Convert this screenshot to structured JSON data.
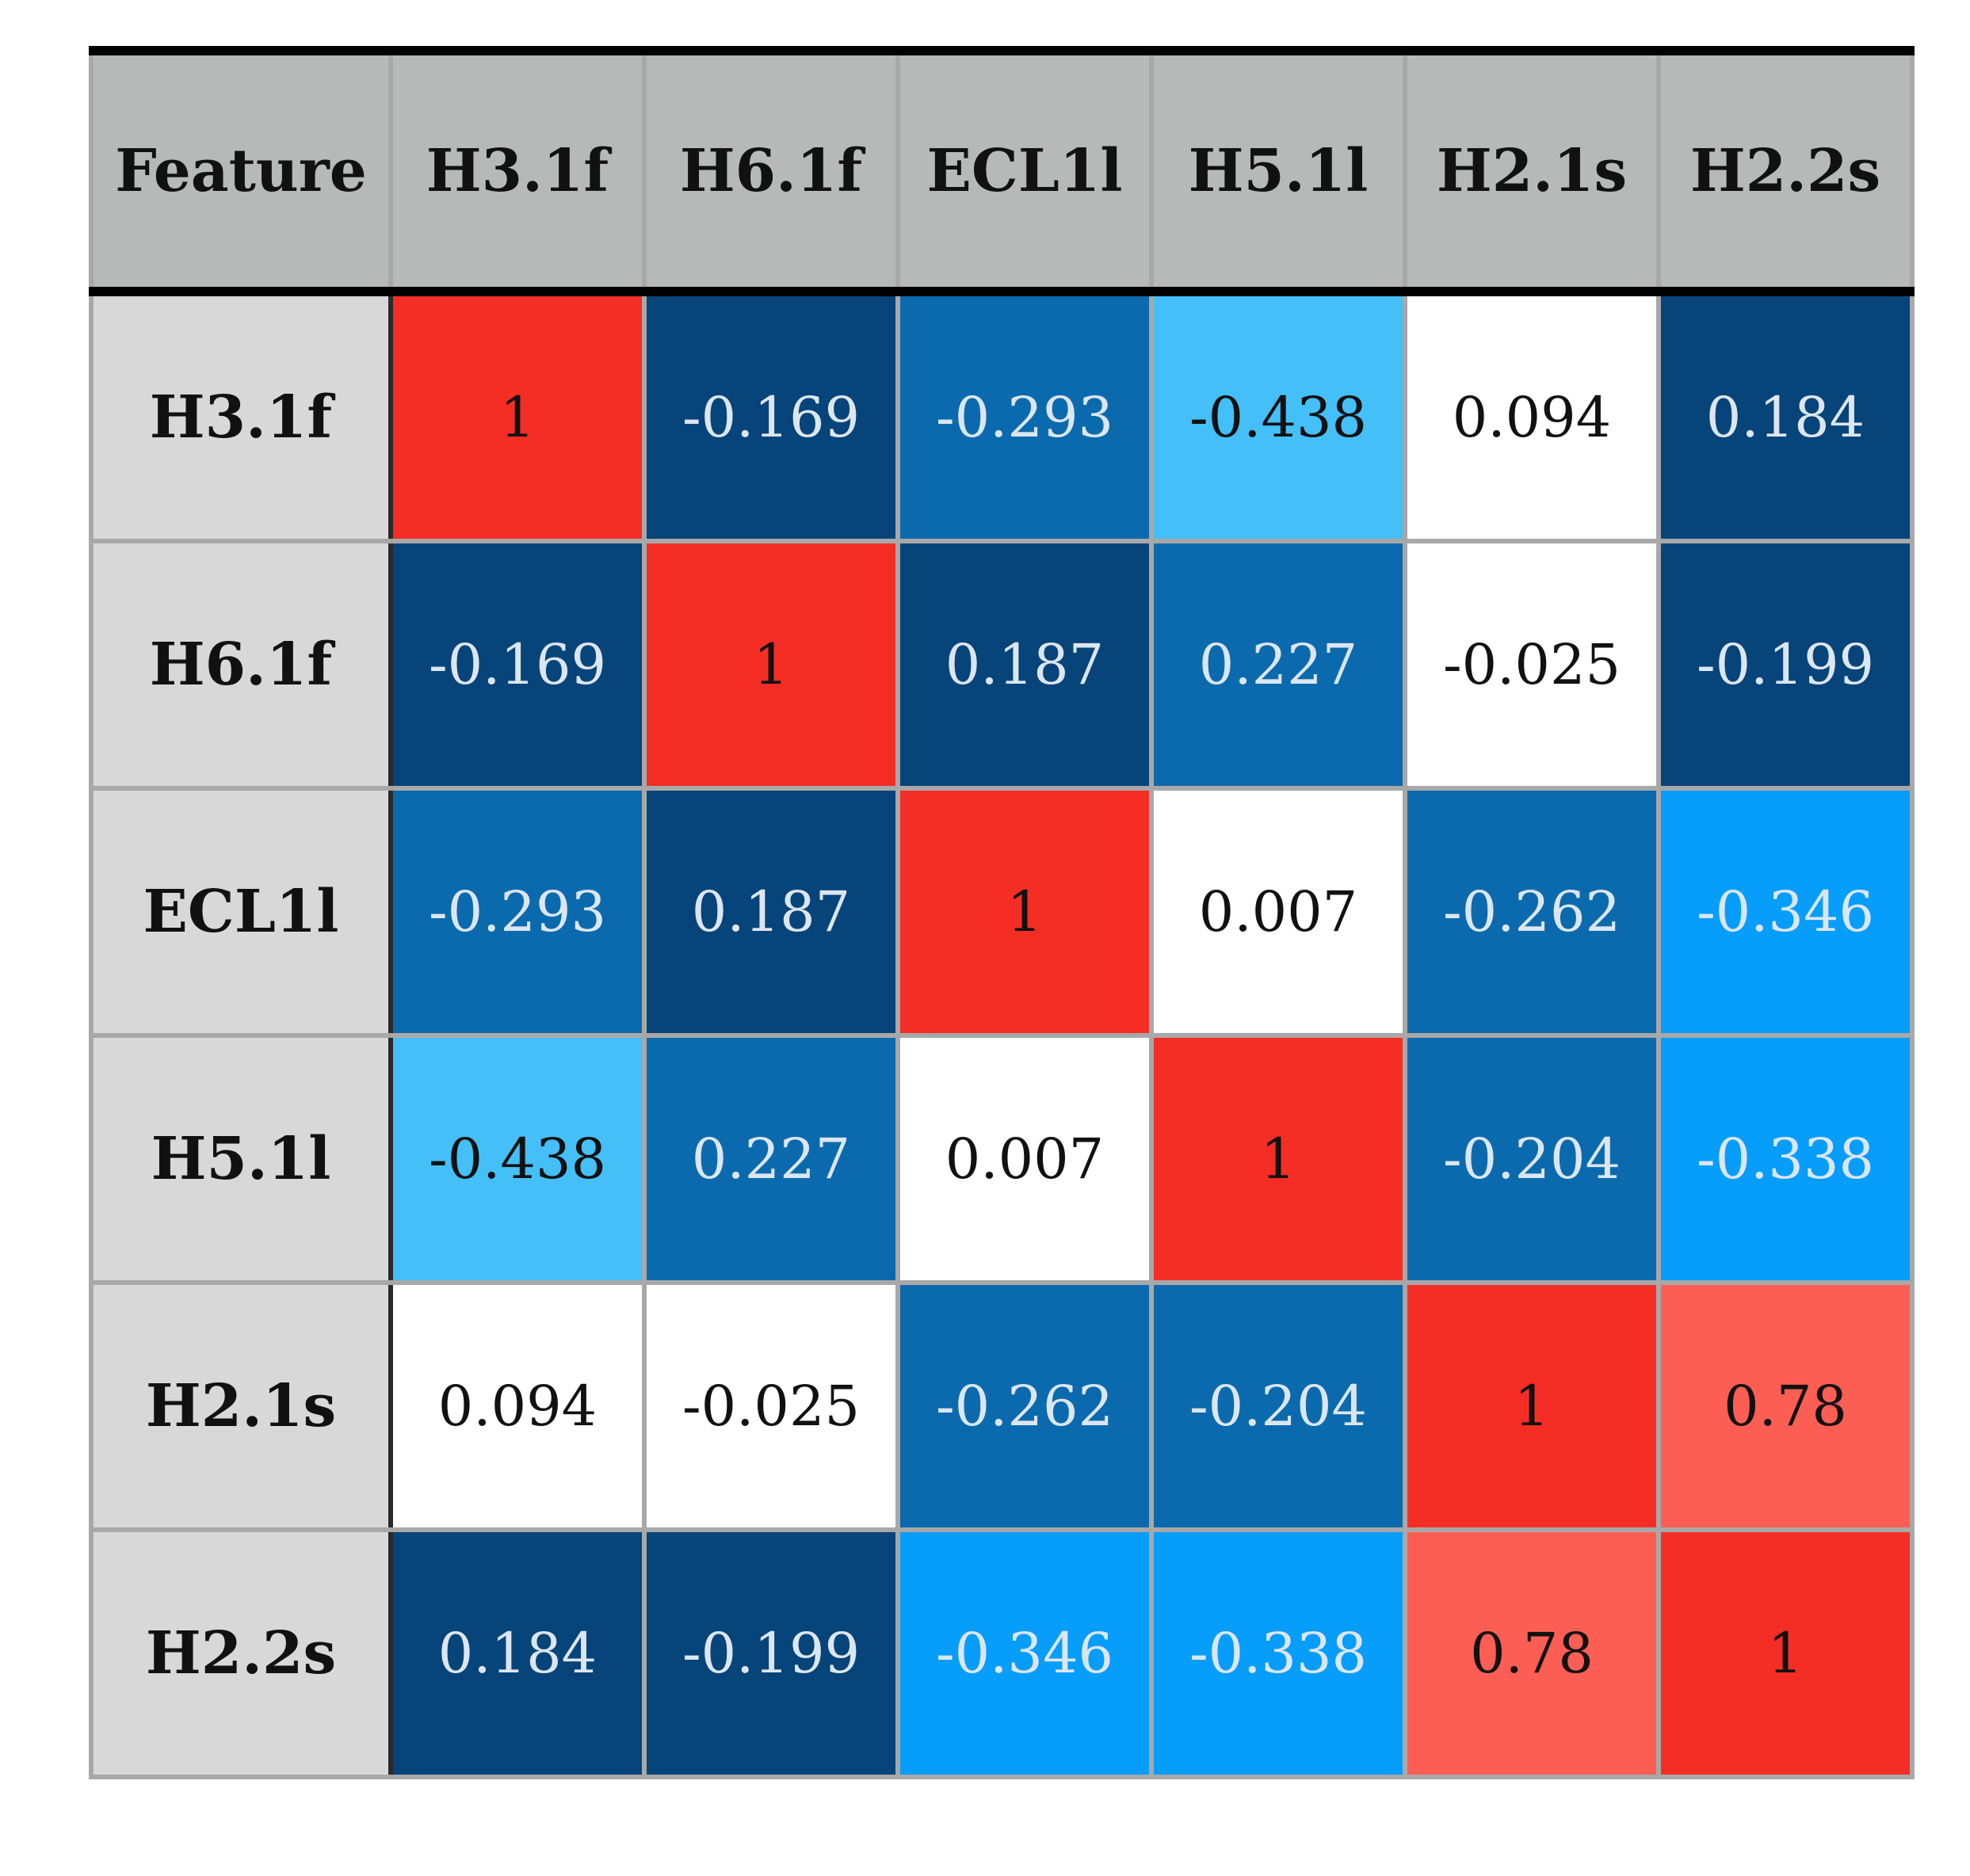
{
  "chart_data": {
    "type": "heatmap",
    "corner_label": "Feature",
    "columns": [
      "H3.1f",
      "H6.1f",
      "ECL1l",
      "H5.1l",
      "H2.1s",
      "H2.2s"
    ],
    "rows": [
      "H3.1f",
      "H6.1f",
      "ECL1l",
      "H5.1l",
      "H2.1s",
      "H2.2s"
    ],
    "values": [
      [
        "1",
        "-0.169",
        "-0.293",
        "-0.438",
        "0.094",
        "0.184"
      ],
      [
        "-0.169",
        "1",
        "0.187",
        "0.227",
        "-0.025",
        "-0.199"
      ],
      [
        "-0.293",
        "0.187",
        "1",
        "0.007",
        "-0.262",
        "-0.346"
      ],
      [
        "-0.438",
        "0.227",
        "0.007",
        "1",
        "-0.204",
        "-0.338"
      ],
      [
        "0.094",
        "-0.025",
        "-0.262",
        "-0.204",
        "1",
        "0.78"
      ],
      [
        "0.184",
        "-0.199",
        "-0.346",
        "-0.338",
        "0.78",
        "1"
      ]
    ],
    "cell_colors": [
      [
        "#f52e25",
        "#06447a",
        "#0b6aad",
        "#45bff8",
        "#ffffff",
        "#06447a"
      ],
      [
        "#06447a",
        "#f52e25",
        "#06447a",
        "#0b6aad",
        "#ffffff",
        "#06447a"
      ],
      [
        "#0b6aad",
        "#06447a",
        "#f52e25",
        "#ffffff",
        "#0b6aad",
        "#079dfb"
      ],
      [
        "#45bff8",
        "#0b6aad",
        "#ffffff",
        "#f52e25",
        "#0b6aad",
        "#079dfb"
      ],
      [
        "#ffffff",
        "#ffffff",
        "#0b6aad",
        "#0b6aad",
        "#f52e25",
        "#fd5e53"
      ],
      [
        "#06447a",
        "#06447a",
        "#079dfb",
        "#079dfb",
        "#fd5e53",
        "#f52e25"
      ]
    ],
    "text_colors": [
      [
        "#111111",
        "#dce6f0",
        "#dce6f0",
        "#111111",
        "#111111",
        "#dce6f0"
      ],
      [
        "#dce6f0",
        "#111111",
        "#dce6f0",
        "#dce6f0",
        "#111111",
        "#dce6f0"
      ],
      [
        "#dce6f0",
        "#dce6f0",
        "#111111",
        "#111111",
        "#dce6f0",
        "#dce6f0"
      ],
      [
        "#111111",
        "#dce6f0",
        "#111111",
        "#111111",
        "#dce6f0",
        "#dce6f0"
      ],
      [
        "#111111",
        "#111111",
        "#dce6f0",
        "#dce6f0",
        "#111111",
        "#111111"
      ],
      [
        "#dce6f0",
        "#dce6f0",
        "#dce6f0",
        "#dce6f0",
        "#111111",
        "#111111"
      ]
    ]
  }
}
